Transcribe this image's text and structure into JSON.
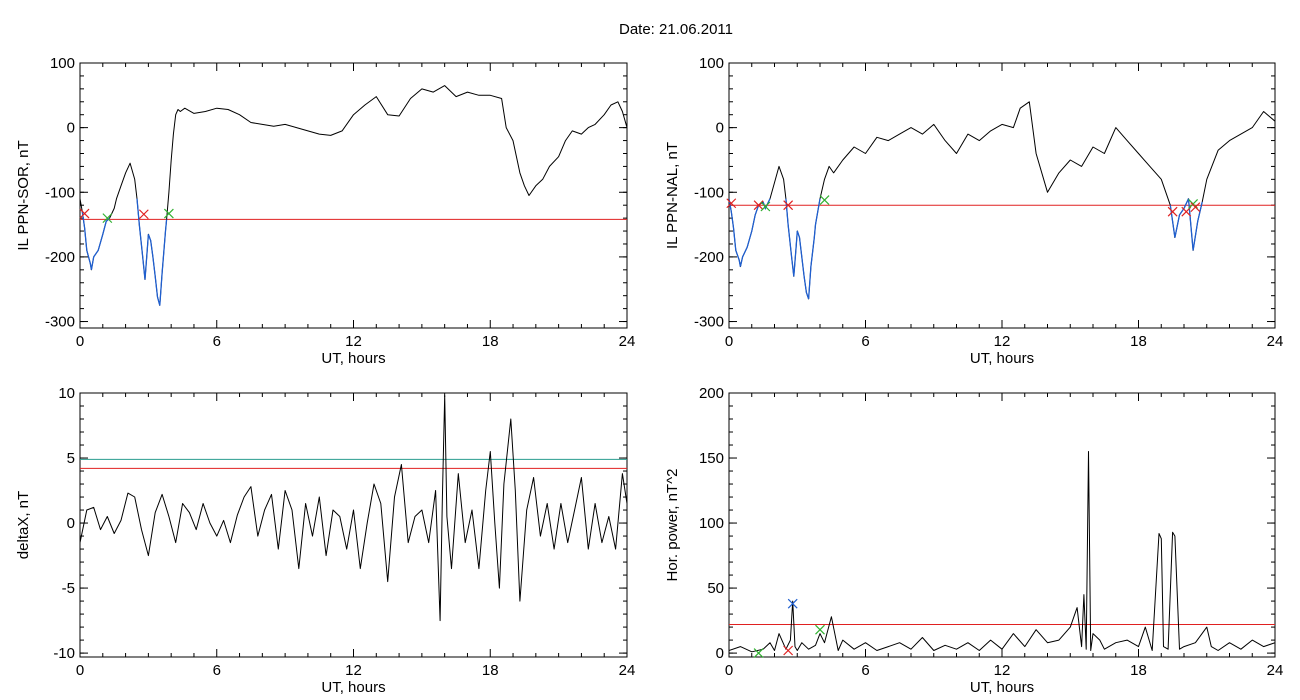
{
  "figure": {
    "title": "Date:  21.06.2011"
  },
  "chart_data": [
    {
      "type": "line",
      "ylabel": "IL PPN-SOR, nT",
      "xlabel": "UT, hours",
      "xlim": [
        0,
        24
      ],
      "ylim": [
        -310,
        100
      ],
      "xticks": [
        "0",
        "6",
        "12",
        "18",
        "24"
      ],
      "yticks": [
        "100",
        "0",
        "-100",
        "-200",
        "-300"
      ],
      "ytick_values": [
        100,
        0,
        -100,
        -200,
        -300
      ],
      "grid": false,
      "colors": {
        "line": "#000000",
        "below_threshold": "#1f5fd0",
        "threshold": "#e02020"
      },
      "thresholds": [
        {
          "y": -142,
          "color": "#e02020"
        }
      ],
      "series": [
        {
          "x": [
            0,
            0.1,
            0.2,
            0.3,
            0.45,
            0.5,
            0.6,
            0.8,
            1.0,
            1.15,
            1.3,
            1.5,
            1.6,
            1.8,
            2.0,
            2.2,
            2.4,
            2.5,
            2.6,
            2.75,
            2.85,
            2.95,
            3.0,
            3.1,
            3.2,
            3.3,
            3.4,
            3.5,
            3.6,
            3.75,
            3.8,
            3.9,
            4.0,
            4.1,
            4.2,
            4.3,
            4.4,
            4.6,
            5.0,
            5.5,
            6.0,
            6.5,
            7.0,
            7.5,
            8.0,
            8.5,
            9.0,
            9.5,
            10.0,
            10.5,
            11.0,
            11.5,
            12.0,
            12.5,
            13.0,
            13.5,
            14.0,
            14.5,
            15.0,
            15.5,
            16.0,
            16.5,
            17.0,
            17.5,
            18.0,
            18.5,
            18.7,
            19.0,
            19.3,
            19.5,
            19.7,
            20.0,
            20.3,
            20.6,
            21.0,
            21.3,
            21.6,
            22.0,
            22.3,
            22.6,
            23.0,
            23.3,
            23.6,
            23.8,
            24.0
          ],
          "y": [
            -110,
            -130,
            -155,
            -190,
            -210,
            -220,
            -200,
            -190,
            -165,
            -145,
            -140,
            -125,
            -110,
            -90,
            -70,
            -55,
            -80,
            -110,
            -150,
            -200,
            -235,
            -190,
            -165,
            -175,
            -200,
            -230,
            -262,
            -275,
            -225,
            -160,
            -142,
            -100,
            -50,
            -10,
            20,
            28,
            25,
            30,
            22,
            25,
            30,
            28,
            20,
            8,
            5,
            2,
            5,
            0,
            -5,
            -10,
            -12,
            -5,
            20,
            35,
            48,
            20,
            18,
            45,
            60,
            55,
            65,
            48,
            55,
            50,
            50,
            45,
            0,
            -20,
            -70,
            -90,
            -105,
            -90,
            -80,
            -60,
            -45,
            -20,
            -5,
            -10,
            0,
            5,
            20,
            35,
            40,
            25,
            0
          ]
        }
      ],
      "markers": [
        {
          "x": 0.2,
          "y": -133,
          "color": "#e02020"
        },
        {
          "x": 1.2,
          "y": -140,
          "color": "#30b030"
        },
        {
          "x": 2.8,
          "y": -134,
          "color": "#e02020"
        },
        {
          "x": 3.9,
          "y": -133,
          "color": "#30b030"
        }
      ]
    },
    {
      "type": "line",
      "ylabel": "IL PPN-NAL, nT",
      "xlabel": "UT, hours",
      "xlim": [
        0,
        24
      ],
      "ylim": [
        -310,
        100
      ],
      "xticks": [
        "0",
        "6",
        "12",
        "18",
        "24"
      ],
      "yticks": [
        "100",
        "0",
        "-100",
        "-200",
        "-300"
      ],
      "ytick_values": [
        100,
        0,
        -100,
        -200,
        -300
      ],
      "grid": false,
      "colors": {
        "line": "#000000",
        "below_threshold": "#1f5fd0",
        "threshold": "#e02020"
      },
      "thresholds": [
        {
          "y": -120,
          "color": "#e02020"
        }
      ],
      "series": [
        {
          "x": [
            0,
            0.1,
            0.2,
            0.3,
            0.45,
            0.5,
            0.6,
            0.8,
            1.0,
            1.15,
            1.3,
            1.5,
            1.6,
            1.8,
            2.0,
            2.2,
            2.4,
            2.5,
            2.6,
            2.75,
            2.85,
            2.95,
            3.0,
            3.1,
            3.2,
            3.3,
            3.4,
            3.5,
            3.6,
            3.75,
            3.8,
            4.0,
            4.2,
            4.4,
            4.6,
            5.0,
            5.5,
            6.0,
            6.5,
            7.0,
            7.5,
            8.0,
            8.5,
            9.0,
            9.5,
            10.0,
            10.5,
            11.0,
            11.5,
            12.0,
            12.5,
            12.8,
            13.2,
            13.5,
            14.0,
            14.5,
            15.0,
            15.5,
            16.0,
            16.5,
            17.0,
            17.5,
            18.0,
            18.5,
            19.0,
            19.4,
            19.6,
            19.8,
            20.0,
            20.2,
            20.4,
            20.6,
            20.8,
            21.0,
            21.5,
            22.0,
            22.5,
            23.0,
            23.5,
            24.0
          ],
          "y": [
            -110,
            -130,
            -155,
            -190,
            -205,
            -215,
            -200,
            -185,
            -160,
            -135,
            -120,
            -115,
            -125,
            -110,
            -85,
            -60,
            -80,
            -110,
            -150,
            -200,
            -230,
            -185,
            -160,
            -170,
            -200,
            -230,
            -255,
            -265,
            -215,
            -170,
            -150,
            -110,
            -80,
            -60,
            -70,
            -50,
            -30,
            -40,
            -15,
            -20,
            -10,
            0,
            -10,
            5,
            -20,
            -40,
            -10,
            -20,
            -5,
            5,
            0,
            30,
            40,
            -40,
            -100,
            -70,
            -50,
            -60,
            -30,
            -40,
            0,
            -20,
            -40,
            -60,
            -80,
            -120,
            -170,
            -135,
            -125,
            -110,
            -190,
            -145,
            -115,
            -80,
            -35,
            -20,
            -10,
            0,
            25,
            10
          ]
        }
      ],
      "markers": [
        {
          "x": 0.1,
          "y": -117,
          "color": "#e02020"
        },
        {
          "x": 1.3,
          "y": -120,
          "color": "#e02020"
        },
        {
          "x": 1.6,
          "y": -122,
          "color": "#30b030"
        },
        {
          "x": 2.6,
          "y": -120,
          "color": "#e02020"
        },
        {
          "x": 4.2,
          "y": -112,
          "color": "#30b030"
        },
        {
          "x": 19.5,
          "y": -130,
          "color": "#e02020"
        },
        {
          "x": 20.1,
          "y": -130,
          "color": "#e02020"
        },
        {
          "x": 20.4,
          "y": -118,
          "color": "#30b030"
        },
        {
          "x": 20.5,
          "y": -123,
          "color": "#e02020"
        }
      ]
    },
    {
      "type": "line",
      "ylabel": "deltaX, nT",
      "xlabel": "UT, hours",
      "xlim": [
        0,
        24
      ],
      "ylim": [
        -10.3,
        10
      ],
      "xticks": [
        "0",
        "6",
        "12",
        "18",
        "24"
      ],
      "yticks": [
        "10",
        "5",
        "0",
        "-5",
        "-10"
      ],
      "ytick_values": [
        10,
        5,
        0,
        -5,
        -10
      ],
      "grid": false,
      "colors": {
        "line": "#000000",
        "threshold_upper": "#2a9d8f",
        "threshold_lower": "#e02020"
      },
      "thresholds": [
        {
          "y": 4.9,
          "color": "#2a9d8f"
        },
        {
          "y": 4.2,
          "color": "#e02020"
        }
      ],
      "series": [
        {
          "x": [
            0,
            0.3,
            0.6,
            0.9,
            1.2,
            1.5,
            1.8,
            2.1,
            2.4,
            2.7,
            3.0,
            3.3,
            3.6,
            3.9,
            4.2,
            4.5,
            4.8,
            5.1,
            5.4,
            5.7,
            6.0,
            6.3,
            6.6,
            6.9,
            7.2,
            7.5,
            7.8,
            8.1,
            8.4,
            8.7,
            9.0,
            9.3,
            9.6,
            9.9,
            10.2,
            10.5,
            10.8,
            11.1,
            11.4,
            11.7,
            12.0,
            12.3,
            12.6,
            12.9,
            13.2,
            13.5,
            13.8,
            14.1,
            14.4,
            14.7,
            15.0,
            15.3,
            15.6,
            15.8,
            15.9,
            16.0,
            16.1,
            16.3,
            16.6,
            16.9,
            17.2,
            17.5,
            17.8,
            18.0,
            18.2,
            18.4,
            18.6,
            18.9,
            19.1,
            19.3,
            19.6,
            19.9,
            20.2,
            20.5,
            20.8,
            21.1,
            21.4,
            21.7,
            22.0,
            22.3,
            22.6,
            22.9,
            23.2,
            23.5,
            23.8,
            24.0
          ],
          "y": [
            -1.5,
            1.0,
            1.2,
            -0.5,
            0.5,
            -0.8,
            0.2,
            2.3,
            2.0,
            -0.5,
            -2.5,
            0.8,
            2.2,
            0.5,
            -1.5,
            1.5,
            0.8,
            -0.5,
            1.5,
            0.0,
            -1.0,
            0.2,
            -1.5,
            0.6,
            2.0,
            2.8,
            -1.0,
            1.0,
            2.2,
            -2.0,
            2.5,
            1.0,
            -3.5,
            1.5,
            -1.0,
            2.0,
            -2.5,
            1.0,
            0.5,
            -2.0,
            1.0,
            -3.5,
            0.0,
            3.0,
            1.5,
            -4.5,
            2.0,
            4.5,
            -1.5,
            0.5,
            1.0,
            -1.5,
            2.5,
            -7.5,
            2.0,
            9.8,
            0.5,
            -3.5,
            3.8,
            -1.5,
            1.0,
            -3.5,
            2.5,
            5.5,
            0.0,
            -5.0,
            3.0,
            8.0,
            2.5,
            -6.0,
            1.0,
            3.5,
            -1.0,
            1.5,
            -2.0,
            1.5,
            -1.5,
            1.0,
            3.5,
            -2.0,
            1.5,
            -1.5,
            0.5,
            -2.0,
            3.8,
            1.5
          ]
        }
      ],
      "markers": []
    },
    {
      "type": "line",
      "ylabel": "Hor. power, nT^2",
      "xlabel": "UT, hours",
      "xlim": [
        0,
        24
      ],
      "ylim": [
        -3,
        200
      ],
      "xticks": [
        "0",
        "6",
        "12",
        "18",
        "24"
      ],
      "yticks": [
        "200",
        "150",
        "100",
        "50",
        "0"
      ],
      "ytick_values": [
        200,
        150,
        100,
        50,
        0
      ],
      "grid": false,
      "colors": {
        "line": "#000000",
        "threshold": "#e02020"
      },
      "thresholds": [
        {
          "y": 22,
          "color": "#e02020"
        }
      ],
      "series": [
        {
          "x": [
            0,
            0.5,
            1.0,
            1.5,
            1.8,
            2.0,
            2.2,
            2.5,
            2.7,
            2.8,
            2.9,
            3.0,
            3.2,
            3.5,
            3.8,
            4.0,
            4.2,
            4.5,
            4.8,
            5.0,
            5.5,
            6.0,
            6.5,
            7.0,
            7.5,
            8.0,
            8.5,
            9.0,
            9.5,
            10.0,
            10.5,
            11.0,
            11.5,
            12.0,
            12.5,
            13.0,
            13.5,
            14.0,
            14.5,
            15.0,
            15.3,
            15.5,
            15.6,
            15.7,
            15.8,
            15.9,
            16.0,
            16.3,
            16.5,
            17.0,
            17.5,
            18.0,
            18.3,
            18.6,
            18.9,
            19.0,
            19.1,
            19.3,
            19.5,
            19.6,
            19.8,
            20.0,
            20.5,
            21.0,
            21.2,
            21.5,
            22.0,
            22.5,
            23.0,
            23.5,
            24.0
          ],
          "y": [
            2,
            5,
            1,
            3,
            8,
            2,
            15,
            3,
            10,
            40,
            5,
            2,
            8,
            3,
            6,
            15,
            8,
            28,
            2,
            10,
            3,
            8,
            2,
            5,
            8,
            3,
            12,
            2,
            6,
            3,
            8,
            2,
            10,
            3,
            15,
            5,
            18,
            8,
            10,
            20,
            35,
            5,
            45,
            3,
            155,
            2,
            15,
            10,
            3,
            8,
            10,
            5,
            20,
            2,
            92,
            88,
            5,
            3,
            93,
            90,
            3,
            5,
            8,
            20,
            5,
            2,
            8,
            3,
            10,
            5,
            8
          ]
        }
      ],
      "markers": [
        {
          "x": 1.3,
          "y": 0,
          "color": "#30b030"
        },
        {
          "x": 2.6,
          "y": 2,
          "color": "#e02020"
        },
        {
          "x": 2.8,
          "y": 38,
          "color": "#1f5fd0"
        },
        {
          "x": 4.0,
          "y": 18,
          "color": "#30b030"
        }
      ]
    }
  ]
}
